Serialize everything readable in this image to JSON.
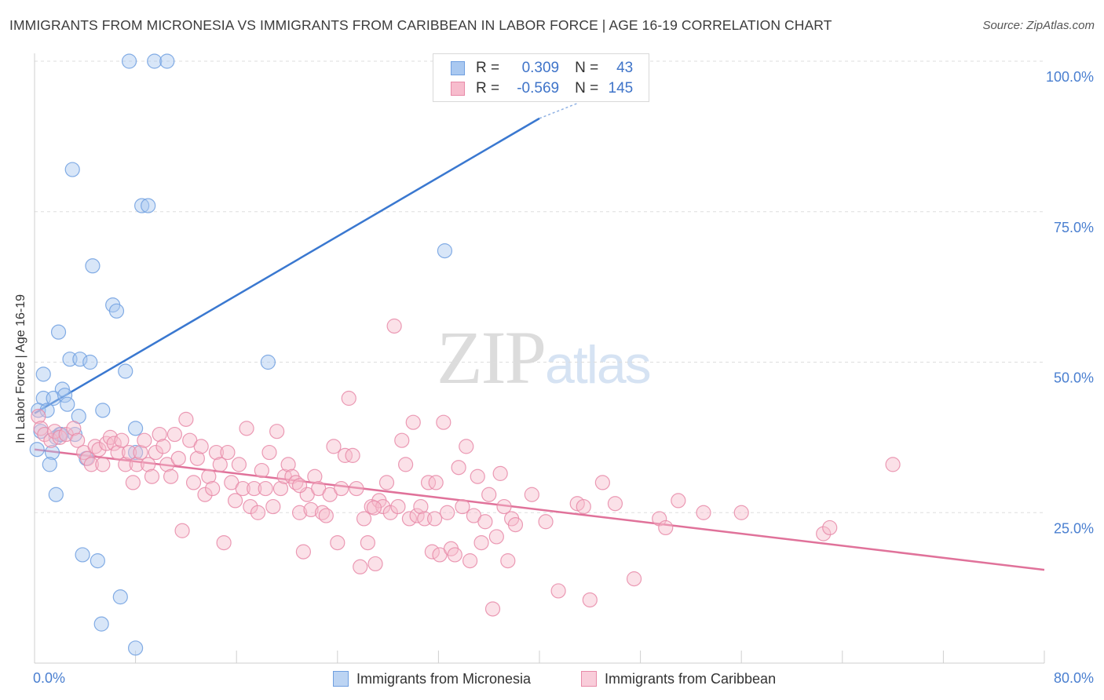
{
  "title": "IMMIGRANTS FROM MICRONESIA VS IMMIGRANTS FROM CARIBBEAN IN LABOR FORCE | AGE 16-19 CORRELATION CHART",
  "source": "Source: ZipAtlas.com",
  "watermark": {
    "zip": "ZIP",
    "atlas": "atlas"
  },
  "legend": {
    "rows": [
      {
        "r_label": "R =",
        "r_value": "0.309",
        "n_label": "N =",
        "n_value": "43",
        "color": "#a9c8f0",
        "border": "#6f9fe0"
      },
      {
        "r_label": "R =",
        "r_value": "-0.569",
        "n_label": "N =",
        "n_value": "145",
        "color": "#f7bccd",
        "border": "#e88aa8"
      }
    ]
  },
  "chart_data": {
    "type": "scatter",
    "xlabel": "",
    "ylabel": "In Labor Force | Age 16-19",
    "xlim": [
      0,
      80
    ],
    "ylim": [
      0,
      100
    ],
    "x_tick_labels": [
      {
        "value": 0,
        "label": "0.0%"
      },
      {
        "value": 80,
        "label": "80.0%"
      }
    ],
    "y_tick_labels": [
      {
        "value": 25,
        "label": "25.0%"
      },
      {
        "value": 50,
        "label": "50.0%"
      },
      {
        "value": 75,
        "label": "75.0%"
      },
      {
        "value": 100,
        "label": "100.0%"
      }
    ],
    "grid": true,
    "legend_position": "bottom",
    "series": [
      {
        "name": "Immigrants from Micronesia",
        "color": "#6f9fe0",
        "fill": "#a9c8f0",
        "trend": {
          "x": [
            0,
            40
          ],
          "y": [
            41.5,
            90.5
          ],
          "dashed_to": [
            43,
            93
          ]
        },
        "points": [
          [
            7.5,
            100
          ],
          [
            9.5,
            100
          ],
          [
            10.5,
            100
          ],
          [
            3.0,
            82
          ],
          [
            8.5,
            76
          ],
          [
            9.0,
            76
          ],
          [
            4.6,
            66
          ],
          [
            6.2,
            59.5
          ],
          [
            6.5,
            58.5
          ],
          [
            32.5,
            68.5
          ],
          [
            1.9,
            55
          ],
          [
            2.8,
            50.5
          ],
          [
            3.6,
            50.5
          ],
          [
            4.4,
            50
          ],
          [
            18.5,
            50
          ],
          [
            7.2,
            48.5
          ],
          [
            0.7,
            48
          ],
          [
            2.2,
            45.5
          ],
          [
            0.7,
            44
          ],
          [
            1.5,
            44
          ],
          [
            2.4,
            44.5
          ],
          [
            0.3,
            42
          ],
          [
            1.0,
            42
          ],
          [
            2.6,
            43
          ],
          [
            5.4,
            42
          ],
          [
            3.5,
            41
          ],
          [
            8.0,
            39
          ],
          [
            0.5,
            38.5
          ],
          [
            1.7,
            37.5
          ],
          [
            2.0,
            38
          ],
          [
            3.2,
            38
          ],
          [
            1.4,
            35
          ],
          [
            4.1,
            34
          ],
          [
            8.0,
            35
          ],
          [
            0.2,
            35.5
          ],
          [
            1.2,
            33
          ],
          [
            1.7,
            28
          ],
          [
            3.8,
            18
          ],
          [
            5.0,
            17
          ],
          [
            6.8,
            11
          ],
          [
            5.3,
            6.5
          ],
          [
            8.0,
            2.5
          ],
          [
            2.1,
            38
          ]
        ]
      },
      {
        "name": "Immigrants from Caribbean",
        "color": "#e88aa8",
        "fill": "#f7bccd",
        "trend": {
          "x": [
            0,
            80
          ],
          "y": [
            35.5,
            15.5
          ]
        },
        "points": [
          [
            0.3,
            41
          ],
          [
            0.5,
            39
          ],
          [
            0.8,
            38
          ],
          [
            1.3,
            37
          ],
          [
            1.6,
            38.5
          ],
          [
            2.0,
            37.5
          ],
          [
            2.5,
            38
          ],
          [
            3.1,
            39
          ],
          [
            3.4,
            37
          ],
          [
            3.9,
            35
          ],
          [
            4.2,
            34
          ],
          [
            4.5,
            33
          ],
          [
            4.8,
            36
          ],
          [
            5.1,
            35.5
          ],
          [
            5.4,
            33
          ],
          [
            5.7,
            36.5
          ],
          [
            6.0,
            37.5
          ],
          [
            6.3,
            36.5
          ],
          [
            6.6,
            35
          ],
          [
            6.9,
            37
          ],
          [
            7.2,
            33
          ],
          [
            7.5,
            35
          ],
          [
            7.8,
            30
          ],
          [
            8.1,
            33
          ],
          [
            8.4,
            35
          ],
          [
            8.7,
            37
          ],
          [
            9.0,
            33
          ],
          [
            9.3,
            31
          ],
          [
            9.6,
            35
          ],
          [
            9.9,
            38
          ],
          [
            10.2,
            36
          ],
          [
            10.5,
            33
          ],
          [
            10.8,
            31
          ],
          [
            11.1,
            38
          ],
          [
            11.4,
            34
          ],
          [
            11.7,
            22
          ],
          [
            12.0,
            40.5
          ],
          [
            12.3,
            37
          ],
          [
            12.6,
            30
          ],
          [
            12.9,
            34
          ],
          [
            13.2,
            36
          ],
          [
            13.5,
            28
          ],
          [
            13.8,
            31
          ],
          [
            14.1,
            29
          ],
          [
            14.4,
            35
          ],
          [
            14.7,
            33
          ],
          [
            15.0,
            20
          ],
          [
            15.3,
            35
          ],
          [
            15.6,
            30
          ],
          [
            15.9,
            27
          ],
          [
            16.2,
            33
          ],
          [
            16.5,
            29
          ],
          [
            16.8,
            39
          ],
          [
            17.1,
            26
          ],
          [
            17.4,
            29
          ],
          [
            17.7,
            25
          ],
          [
            18.0,
            32
          ],
          [
            18.3,
            29
          ],
          [
            18.6,
            35
          ],
          [
            18.9,
            26
          ],
          [
            19.2,
            38.5
          ],
          [
            19.5,
            29
          ],
          [
            19.8,
            31
          ],
          [
            20.1,
            33
          ],
          [
            20.4,
            31
          ],
          [
            20.7,
            30
          ],
          [
            21.0,
            25
          ],
          [
            21.3,
            18.5
          ],
          [
            21.6,
            28
          ],
          [
            21.9,
            25.5
          ],
          [
            22.2,
            31
          ],
          [
            22.5,
            29
          ],
          [
            22.8,
            25
          ],
          [
            23.1,
            24.5
          ],
          [
            23.4,
            28
          ],
          [
            23.7,
            36
          ],
          [
            24.0,
            20
          ],
          [
            24.3,
            29
          ],
          [
            24.6,
            34.5
          ],
          [
            24.9,
            44
          ],
          [
            25.2,
            34.5
          ],
          [
            25.5,
            29
          ],
          [
            25.8,
            16
          ],
          [
            26.1,
            24
          ],
          [
            26.4,
            20
          ],
          [
            26.7,
            26
          ],
          [
            27.0,
            16.5
          ],
          [
            27.3,
            27
          ],
          [
            27.6,
            26
          ],
          [
            27.9,
            30
          ],
          [
            28.2,
            25
          ],
          [
            28.5,
            56
          ],
          [
            28.8,
            26
          ],
          [
            29.1,
            37
          ],
          [
            29.4,
            33
          ],
          [
            29.7,
            24
          ],
          [
            30.0,
            40
          ],
          [
            30.3,
            24.5
          ],
          [
            30.6,
            26
          ],
          [
            30.9,
            24
          ],
          [
            31.2,
            30
          ],
          [
            31.5,
            18.5
          ],
          [
            31.8,
            30
          ],
          [
            32.1,
            18
          ],
          [
            32.4,
            40
          ],
          [
            32.7,
            25
          ],
          [
            33.0,
            19
          ],
          [
            33.3,
            18
          ],
          [
            33.6,
            32.5
          ],
          [
            33.9,
            26
          ],
          [
            34.2,
            36
          ],
          [
            34.5,
            17
          ],
          [
            34.8,
            24.5
          ],
          [
            35.1,
            31
          ],
          [
            35.4,
            20
          ],
          [
            35.7,
            23.5
          ],
          [
            36.0,
            28
          ],
          [
            36.3,
            9
          ],
          [
            36.6,
            21
          ],
          [
            36.9,
            31.5
          ],
          [
            37.2,
            26
          ],
          [
            37.5,
            17
          ],
          [
            37.8,
            24
          ],
          [
            38.1,
            23
          ],
          [
            39.4,
            28
          ],
          [
            40.5,
            23.5
          ],
          [
            41.5,
            12
          ],
          [
            43.0,
            26.5
          ],
          [
            43.5,
            26
          ],
          [
            44.0,
            10.5
          ],
          [
            45.0,
            30
          ],
          [
            46.0,
            26.5
          ],
          [
            47.5,
            14
          ],
          [
            49.5,
            24
          ],
          [
            50.0,
            22.5
          ],
          [
            51.0,
            27
          ],
          [
            53.0,
            25
          ],
          [
            56.0,
            25
          ],
          [
            62.5,
            21.5
          ],
          [
            63.0,
            22.5
          ],
          [
            68.0,
            33
          ],
          [
            21.0,
            29.5
          ],
          [
            26.9,
            25.8
          ],
          [
            31.7,
            24
          ]
        ]
      }
    ]
  }
}
